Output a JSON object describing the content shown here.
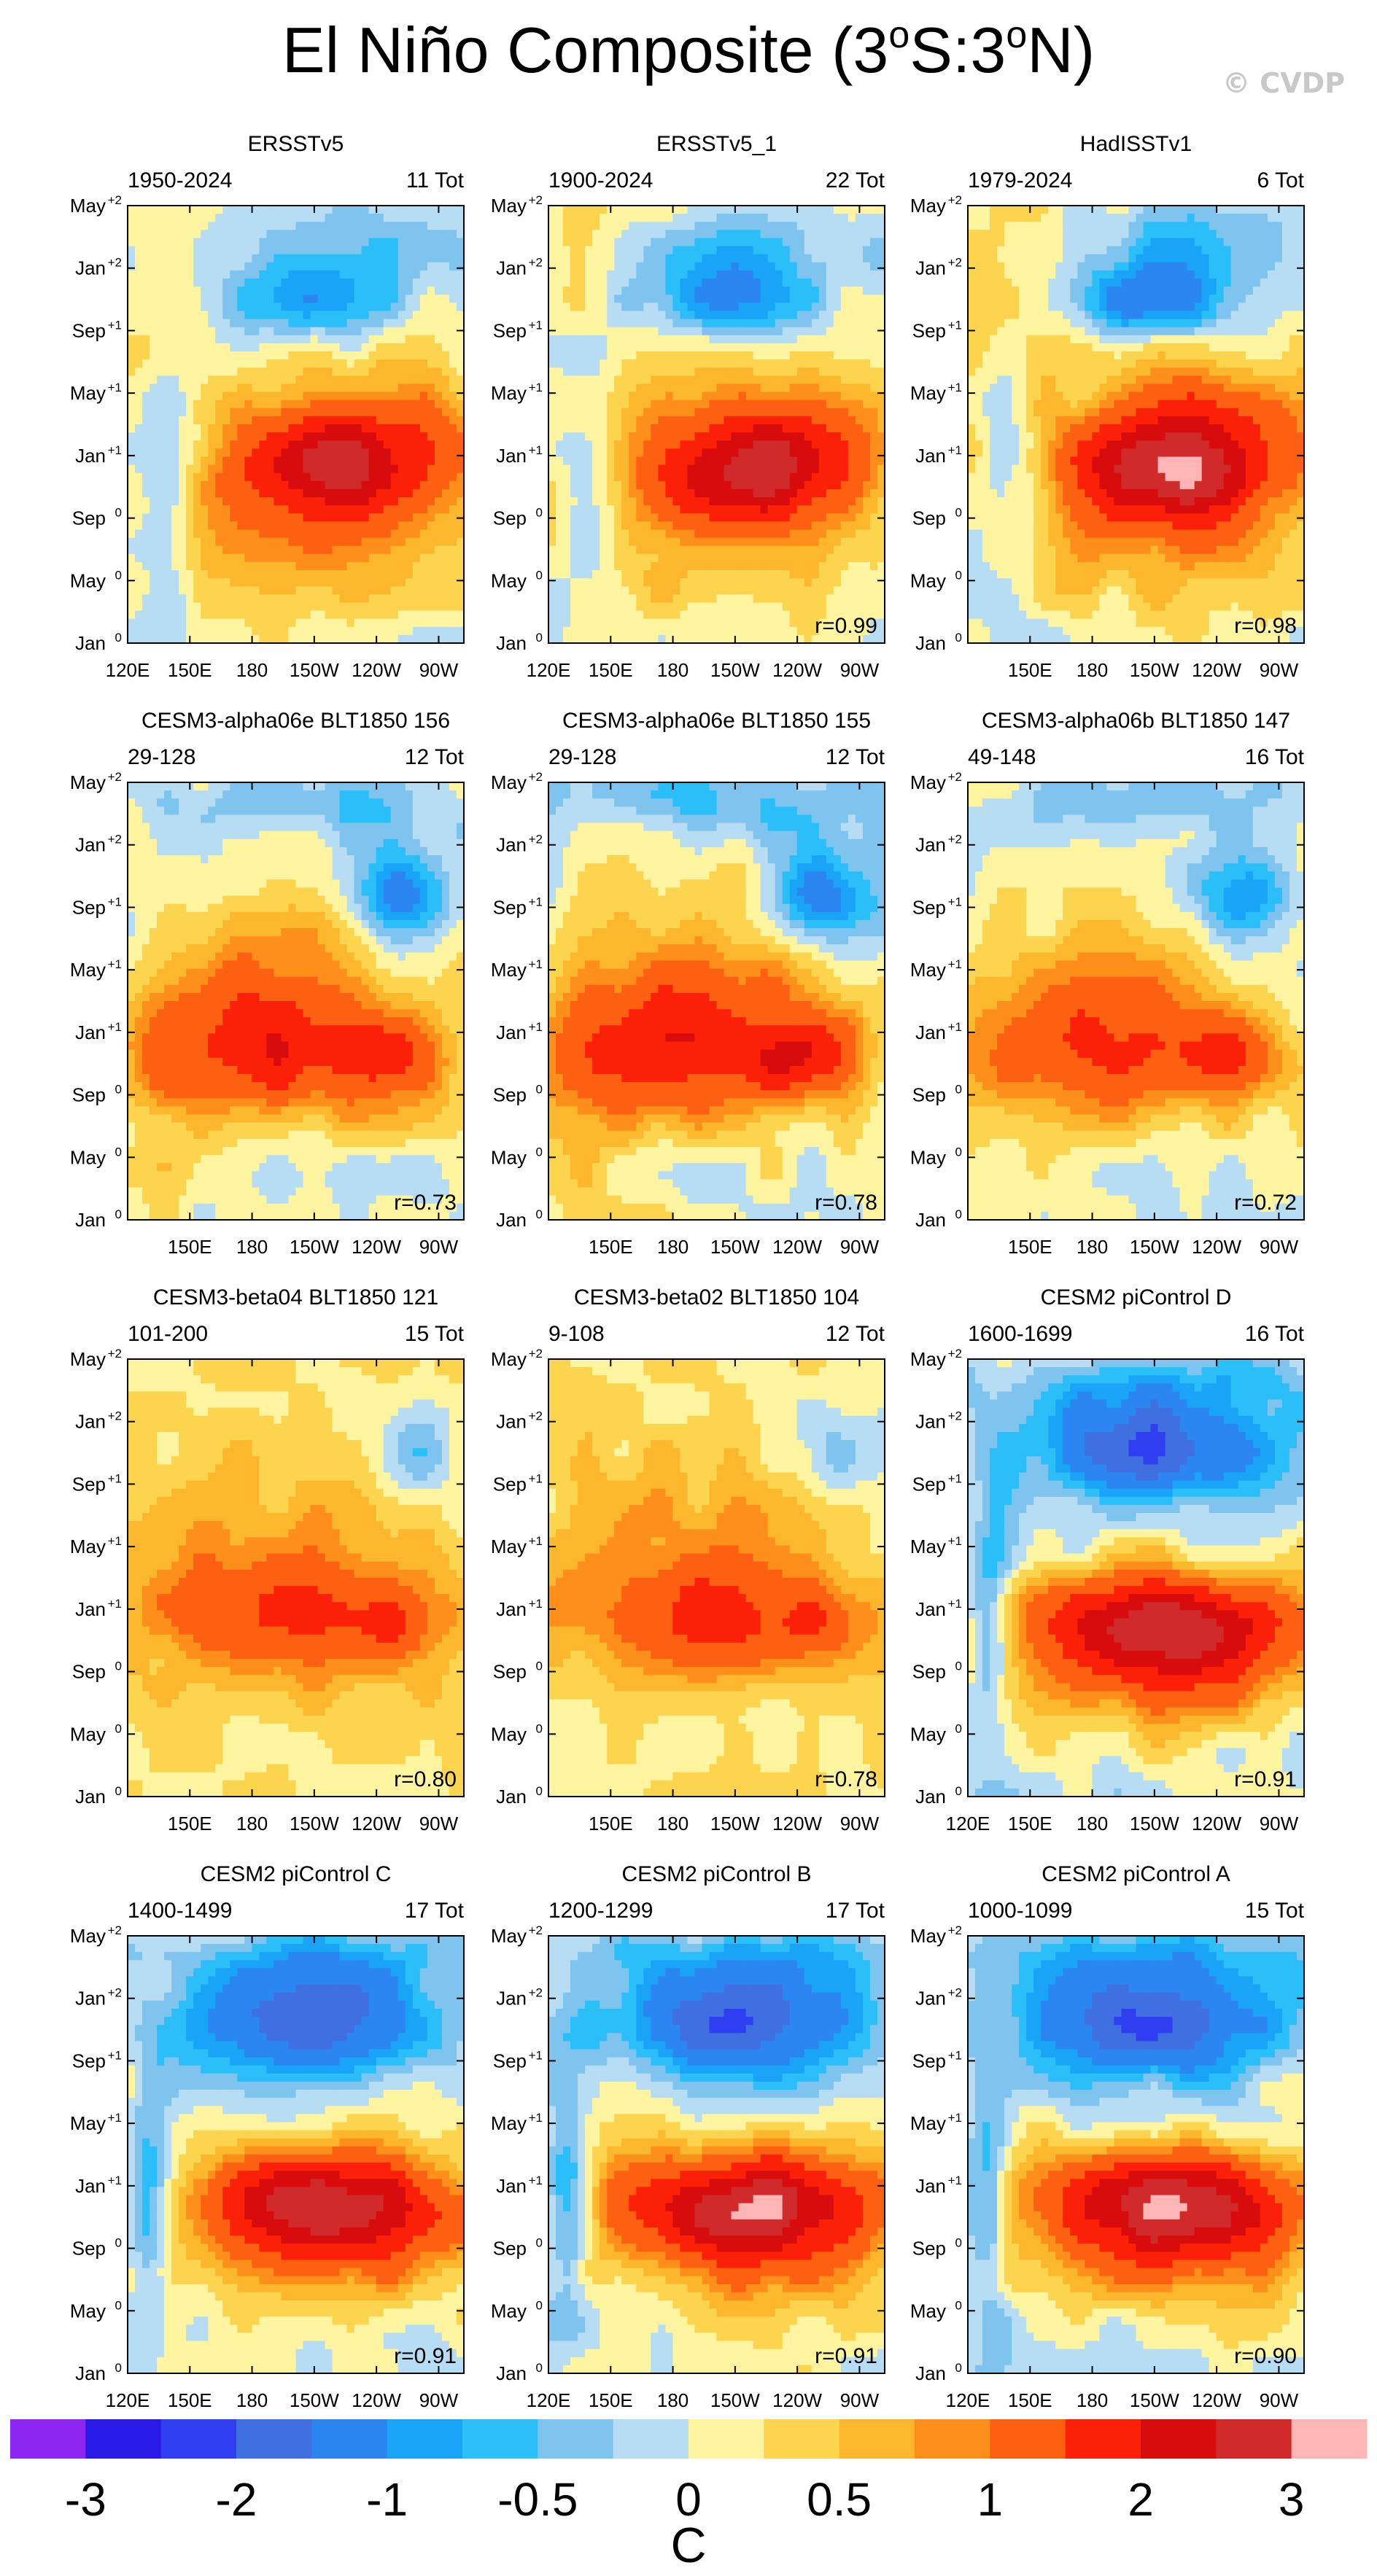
{
  "chart_data": {
    "type": "heatmap",
    "title": "El Niño Composite (3°S:3°N)",
    "watermark": "© CVDP",
    "colorbar": {
      "label": "C",
      "tick_labels": [
        "-3",
        "-2",
        "-1",
        "-0.5",
        "0",
        "0.5",
        "1",
        "2",
        "3"
      ],
      "colors": [
        "#8c26f0",
        "#2a1ae8",
        "#2e3ef0",
        "#3f6fe0",
        "#2b86f2",
        "#1aa4f7",
        "#2bbff9",
        "#7ec4ef",
        "#b6ddf3",
        "#fff4a0",
        "#fdd44d",
        "#fdb72c",
        "#fd8f1a",
        "#fd6010",
        "#fd2008",
        "#d80c0c",
        "#d02a2a",
        "#feb5b5"
      ]
    },
    "y_tick_labels": [
      "May",
      "Jan",
      "Sep",
      "May",
      "Jan",
      "Sep",
      "May",
      "Jan"
    ],
    "y_tick_sups": [
      "+2",
      "+2",
      "+1",
      "+1",
      "+1",
      "0",
      "0",
      "0"
    ],
    "panels": [
      {
        "title": "ERSSTv5",
        "years": "1950-2024",
        "count": "11 Tot",
        "r": "",
        "xticks": [
          "120E",
          "150E",
          "180",
          "150W",
          "120W",
          "90W"
        ],
        "pattern": "obs",
        "amp": 1.0
      },
      {
        "title": "ERSSTv5_1",
        "years": "1900-2024",
        "count": "22 Tot",
        "r": "r=0.99",
        "xticks": [
          "120E",
          "150E",
          "180",
          "150W",
          "120W",
          "90W"
        ],
        "pattern": "obs",
        "amp": 1.0
      },
      {
        "title": "HadISSTv1",
        "years": "1979-2024",
        "count": "6 Tot",
        "r": "r=0.98",
        "xticks": [
          "",
          "150E",
          "180",
          "150W",
          "120W",
          "90W"
        ],
        "pattern": "obs",
        "amp": 1.15
      },
      {
        "title": "CESM3-alpha06e BLT1850 156",
        "years": "29-128",
        "count": "12 Tot",
        "r": "r=0.73",
        "xticks": [
          "",
          "150E",
          "180",
          "150W",
          "120W",
          "90W"
        ],
        "pattern": "alpha",
        "amp": 1.0
      },
      {
        "title": "CESM3-alpha06e BLT1850 155",
        "years": "29-128",
        "count": "12 Tot",
        "r": "r=0.78",
        "xticks": [
          "",
          "150E",
          "180",
          "150W",
          "120W",
          "90W"
        ],
        "pattern": "alpha",
        "amp": 1.05
      },
      {
        "title": "CESM3-alpha06b BLT1850 147",
        "years": "49-148",
        "count": "16 Tot",
        "r": "r=0.72",
        "xticks": [
          "",
          "150E",
          "180",
          "150W",
          "120W",
          "90W"
        ],
        "pattern": "alpha",
        "amp": 0.85
      },
      {
        "title": "CESM3-beta04 BLT1850 121",
        "years": "101-200",
        "count": "15 Tot",
        "r": "r=0.80",
        "xticks": [
          "",
          "150E",
          "180",
          "150W",
          "120W",
          "90W"
        ],
        "pattern": "beta",
        "amp": 0.9
      },
      {
        "title": "CESM3-beta02 BLT1850 104",
        "years": "9-108",
        "count": "12 Tot",
        "r": "r=0.78",
        "xticks": [
          "",
          "150E",
          "180",
          "150W",
          "120W",
          "90W"
        ],
        "pattern": "beta",
        "amp": 0.9
      },
      {
        "title": "CESM2 piControl D",
        "years": "1600-1699",
        "count": "16 Tot",
        "r": "r=0.91",
        "xticks": [
          "120E",
          "150E",
          "180",
          "150W",
          "120W",
          "90W"
        ],
        "pattern": "cesm2",
        "amp": 1.1
      },
      {
        "title": "CESM2 piControl C",
        "years": "1400-1499",
        "count": "17 Tot",
        "r": "r=0.91",
        "xticks": [
          "120E",
          "150E",
          "180",
          "150W",
          "120W",
          "90W"
        ],
        "pattern": "cesm2",
        "amp": 1.1
      },
      {
        "title": "CESM2 piControl B",
        "years": "1200-1299",
        "count": "17 Tot",
        "r": "r=0.91",
        "xticks": [
          "120E",
          "150E",
          "180",
          "150W",
          "120W",
          "90W"
        ],
        "pattern": "cesm2",
        "amp": 1.1
      },
      {
        "title": "CESM2 piControl A",
        "years": "1000-1099",
        "count": "15 Tot",
        "r": "r=0.90",
        "xticks": [
          "120E",
          "150E",
          "180",
          "150W",
          "120W",
          "90W"
        ],
        "pattern": "cesm2",
        "amp": 1.1
      }
    ]
  }
}
